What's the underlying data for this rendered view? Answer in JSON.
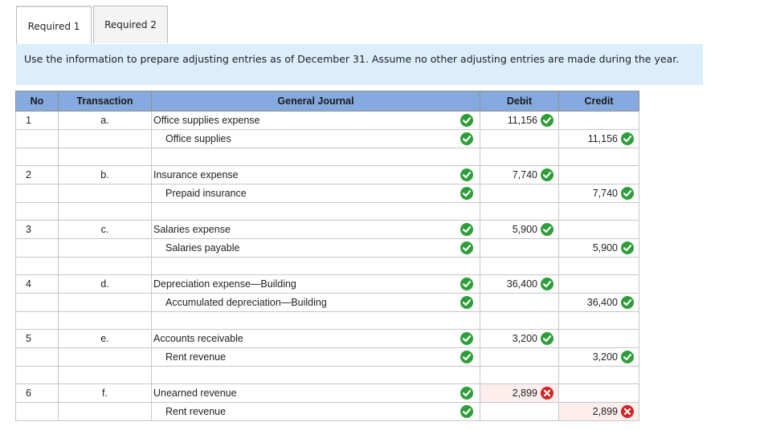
{
  "tabs": [
    {
      "label": "Required 1",
      "active": true
    },
    {
      "label": "Required 2",
      "active": false
    }
  ],
  "instructions": "Use the information to prepare adjusting entries as of December 31. Assume no other adjusting entries are made during the year.",
  "table": {
    "headers": {
      "no": "No",
      "transaction": "Transaction",
      "journal": "General Journal",
      "debit": "Debit",
      "credit": "Credit"
    },
    "entries": [
      {
        "no": "1",
        "transaction": "a.",
        "debit_account": "Office supplies expense",
        "credit_account": "Office supplies",
        "debit": "11,156",
        "credit": "11,156",
        "debit_status": "correct",
        "credit_status": "correct"
      },
      {
        "no": "2",
        "transaction": "b.",
        "debit_account": "Insurance expense",
        "credit_account": "Prepaid insurance",
        "debit": "7,740",
        "credit": "7,740",
        "debit_status": "correct",
        "credit_status": "correct"
      },
      {
        "no": "3",
        "transaction": "c.",
        "debit_account": "Salaries expense",
        "credit_account": "Salaries payable",
        "debit": "5,900",
        "credit": "5,900",
        "debit_status": "correct",
        "credit_status": "correct"
      },
      {
        "no": "4",
        "transaction": "d.",
        "debit_account": "Depreciation expense—Building",
        "credit_account": "Accumulated depreciation—Building",
        "debit": "36,400",
        "credit": "36,400",
        "debit_status": "correct",
        "credit_status": "correct"
      },
      {
        "no": "5",
        "transaction": "e.",
        "debit_account": "Accounts receivable",
        "credit_account": "Rent revenue",
        "debit": "3,200",
        "credit": "3,200",
        "debit_status": "correct",
        "credit_status": "correct"
      },
      {
        "no": "6",
        "transaction": "f.",
        "debit_account": "Unearned revenue",
        "credit_account": "Rent revenue",
        "debit": "2,899",
        "credit": "2,899",
        "debit_status": "incorrect",
        "credit_status": "incorrect"
      }
    ]
  },
  "colors": {
    "correct": "#2e9e3a",
    "incorrect": "#d22525",
    "header_bg": "#85aadf",
    "instructions_bg": "#dceefb"
  }
}
